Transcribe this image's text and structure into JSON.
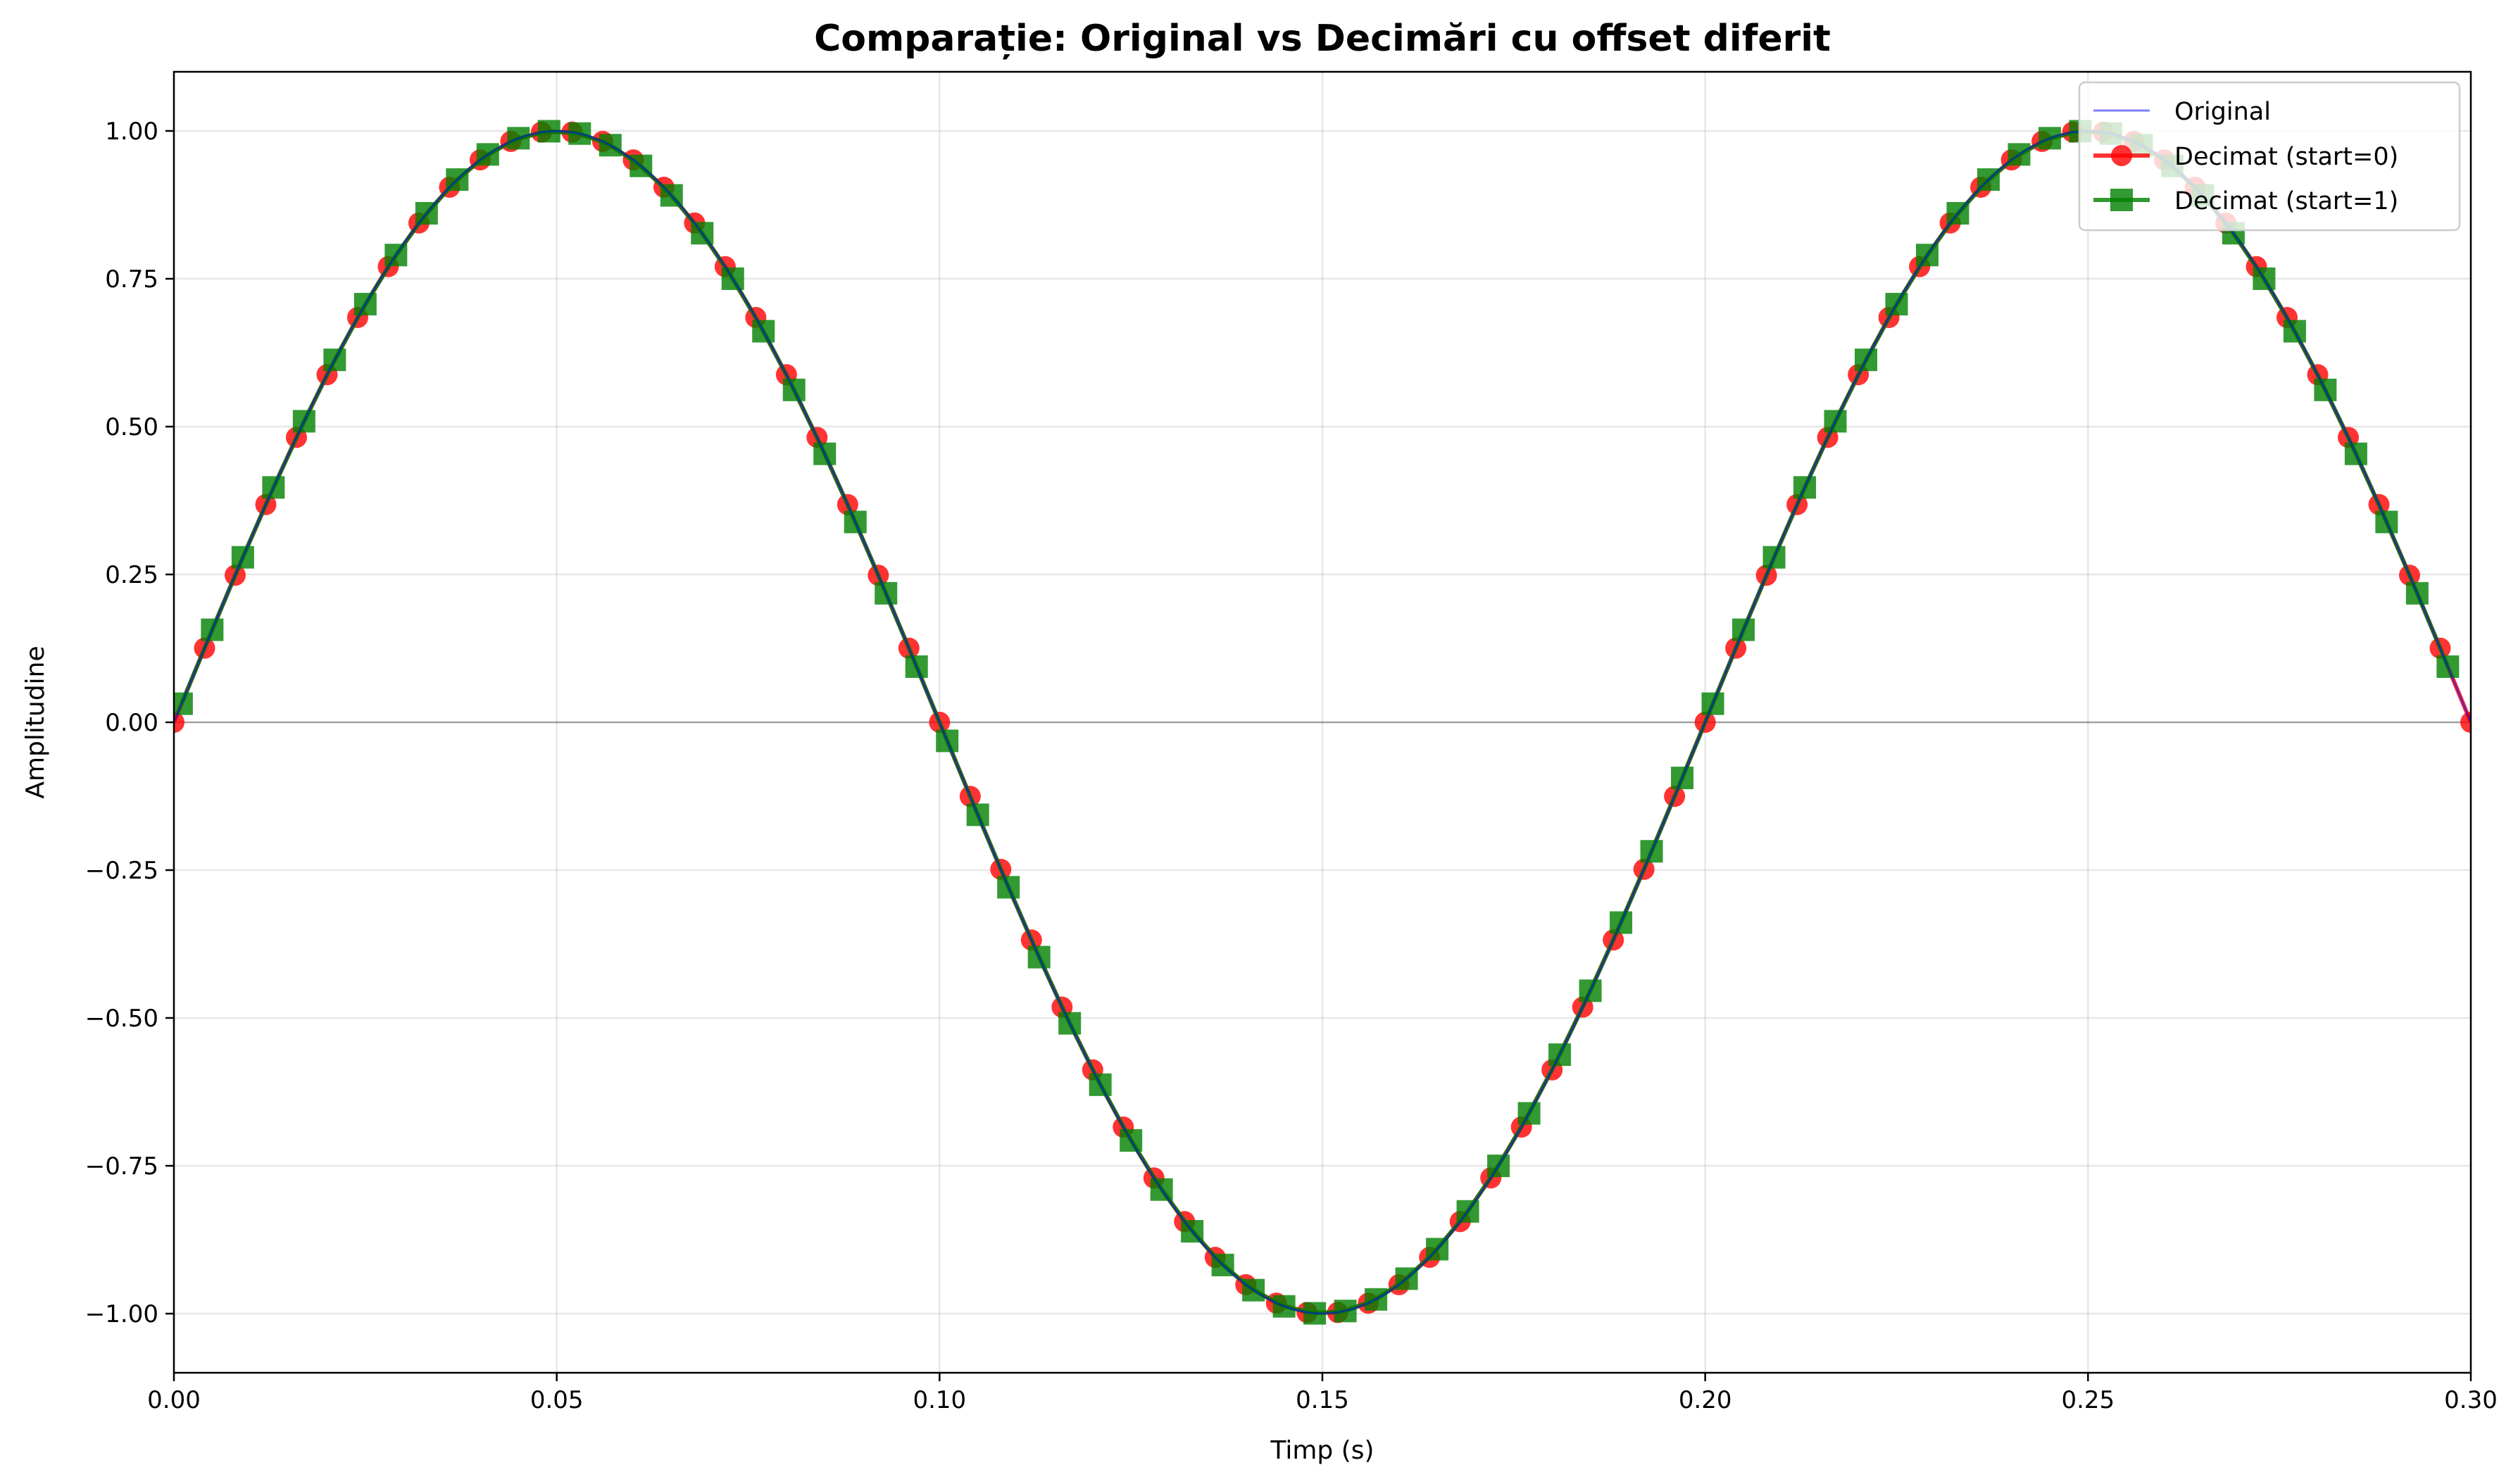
{
  "chart_data": {
    "type": "line",
    "title": "Comparație: Original vs Decimări cu offset diferit",
    "xlabel": "Timp (s)",
    "ylabel": "Amplitudine",
    "xlim": [
      0.0,
      0.3
    ],
    "ylim": [
      -1.1,
      1.1
    ],
    "x_ticks": [
      "0.00",
      "0.05",
      "0.10",
      "0.15",
      "0.20",
      "0.25",
      "0.30"
    ],
    "y_ticks": [
      "1.00",
      "0.75",
      "0.50",
      "0.25",
      "0.00",
      "−0.25",
      "−0.50",
      "−0.75",
      "−1.00"
    ],
    "grid": true,
    "legend_position": "top-right",
    "signal_frequency_hz": 5,
    "series": [
      {
        "name": "Original",
        "color": "#0000ff",
        "marker": "none",
        "line": "thin",
        "sample_period_s": 0.002,
        "x_start": 0.0,
        "x_end": 0.3
      },
      {
        "name": "Decimat (start=0)",
        "color": "#ff0000",
        "marker": "circle",
        "line": "thick",
        "sample_period_s": 0.004,
        "x_start": 0.0,
        "x_end": 0.3
      },
      {
        "name": "Decimat (start=1)",
        "color": "#008000",
        "marker": "square",
        "line": "thick",
        "sample_period_s": 0.004,
        "x_start": 0.001,
        "x_end": 0.3
      }
    ]
  }
}
